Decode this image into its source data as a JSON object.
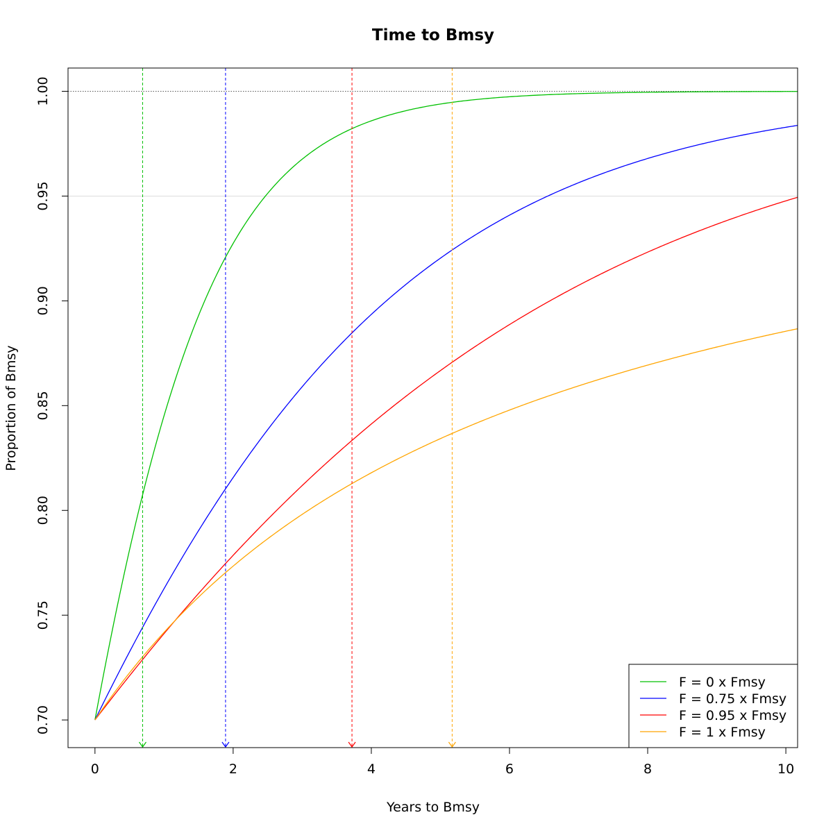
{
  "chart_data": {
    "type": "line",
    "title": "Time to Bmsy",
    "xlabel": "Years to Bmsy",
    "ylabel": "Proportion of Bmsy",
    "xlim": [
      -0.39,
      10.17
    ],
    "ylim": [
      0.6868,
      1.0111
    ],
    "x_ticks": [
      0,
      2,
      4,
      6,
      8,
      10
    ],
    "x_tick_labels": [
      "0",
      "2",
      "4",
      "6",
      "8",
      "10"
    ],
    "y_ticks": [
      0.7,
      0.75,
      0.8,
      0.85,
      0.9,
      0.95,
      1.0
    ],
    "y_tick_labels": [
      "0.70",
      "0.75",
      "0.80",
      "0.85",
      "0.90",
      "0.95",
      "1.00"
    ],
    "reference_lines": [
      {
        "y": 1.0,
        "style": "dotted",
        "color": "#555555"
      },
      {
        "y": 0.95,
        "style": "solid",
        "color": "#dddddd"
      }
    ],
    "series": [
      {
        "name": "F = 0 x Fmsy",
        "color": "#00c000",
        "start": 0.7,
        "model": "logistic",
        "rate": 0.85,
        "marker_x": 0.69
      },
      {
        "name": "F = 0.75 x Fmsy",
        "color": "#0000ff",
        "start": 0.7,
        "model": "logistic",
        "rate": 0.32,
        "marker_x": 1.89
      },
      {
        "name": "F = 0.95 x Fmsy",
        "color": "#ff0000",
        "start": 0.7,
        "model": "logistic",
        "rate": 0.205,
        "marker_x": 3.72
      },
      {
        "name": "F = 1 x Fmsy",
        "color": "#ffa500",
        "start": 0.7,
        "model": "inverse",
        "rate": 0.162,
        "marker_x": 5.17
      }
    ],
    "legend_position": "bottom-right",
    "grid": false
  }
}
